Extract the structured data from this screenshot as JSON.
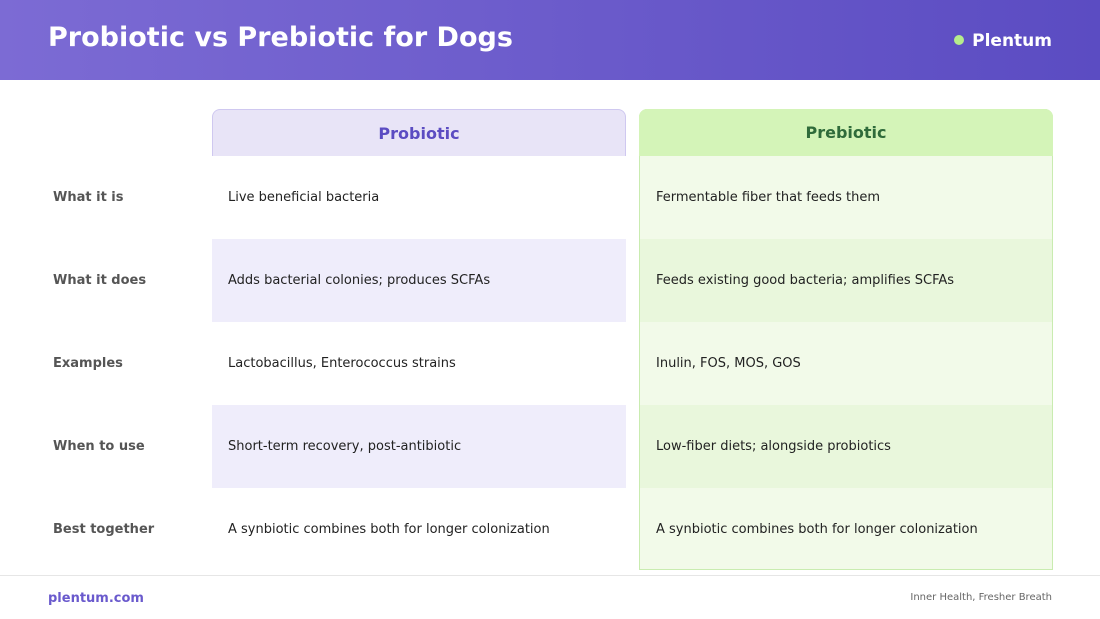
{
  "header": {
    "title": "Probiotic vs Prebiotic for Dogs",
    "brand": "Plentum"
  },
  "table": {
    "columns": [
      "Probiotic",
      "Prebiotic"
    ],
    "rows": [
      {
        "label": "What it is",
        "cells": [
          "Live beneficial bacteria",
          "Fermentable fiber that feeds them"
        ]
      },
      {
        "label": "What it does",
        "cells": [
          "Adds bacterial colonies; produces SCFAs",
          "Feeds existing good bacteria; amplifies SCFAs"
        ]
      },
      {
        "label": "Examples",
        "cells": [
          "Lactobacillus, Enterococcus strains",
          "Inulin, FOS, MOS, GOS"
        ]
      },
      {
        "label": "When to use",
        "cells": [
          "Short-term recovery, post-antibiotic",
          "Low-fiber diets; alongside probiotics"
        ]
      },
      {
        "label": "Best together",
        "cells": [
          "A synbiotic combines both for longer colonization",
          "A synbiotic combines both for longer colonization"
        ]
      }
    ]
  },
  "footer": {
    "site": "plentum.com",
    "tagline": "Inner Health, Fresher Breath"
  }
}
